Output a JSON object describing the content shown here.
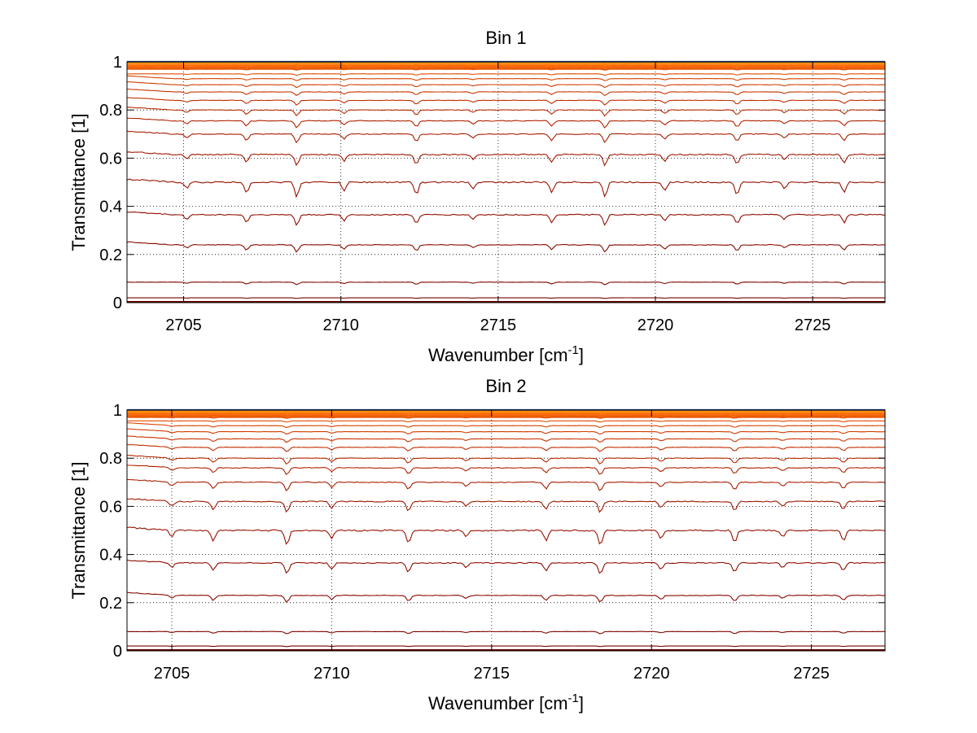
{
  "chart_data": [
    {
      "type": "line",
      "title": "Bin 1",
      "xlabel": "Wavenumber [cm",
      "xlabel_sup": "-1",
      "xlabel_end": "]",
      "ylabel": "Transmittance [1]",
      "xlim": [
        2703.2,
        2727.3
      ],
      "ylim": [
        0,
        1
      ],
      "xticks": [
        "2705",
        "2710",
        "2715",
        "2720",
        "2725"
      ],
      "yticks": [
        "0",
        "0.2",
        "0.4",
        "0.6",
        "0.8",
        "1"
      ],
      "grid": true,
      "dip_x": [
        2705.1,
        2707.0,
        2708.6,
        2710.1,
        2712.4,
        2714.2,
        2716.7,
        2718.4,
        2720.3,
        2722.6,
        2724.1,
        2726.0
      ],
      "series_levels": [
        1.0,
        0.995,
        0.99,
        0.985,
        0.98,
        0.975,
        0.97,
        0.95,
        0.93,
        0.905,
        0.875,
        0.84,
        0.8,
        0.755,
        0.7,
        0.615,
        0.5,
        0.365,
        0.24,
        0.085,
        0.02,
        0.005
      ],
      "series_colors": [
        "#1f4fa8",
        "#ff8c00",
        "#ff7a00",
        "#ff6a00",
        "#f86000",
        "#f05a00",
        "#e85500",
        "#e04c00",
        "#d84400",
        "#d03c00",
        "#c83400",
        "#c02e00",
        "#b82800",
        "#b02200",
        "#a81c00",
        "#a01600",
        "#981200",
        "#900e00",
        "#880a00",
        "#800600",
        "#780300",
        "#700000"
      ]
    },
    {
      "type": "line",
      "title": "Bin 2",
      "xlabel": "Wavenumber [cm",
      "xlabel_sup": "-1",
      "xlabel_end": "]",
      "ylabel": "Transmittance [1]",
      "xlim": [
        2703.6,
        2727.3
      ],
      "ylim": [
        0,
        1
      ],
      "xticks": [
        "2705",
        "2710",
        "2715",
        "2720",
        "2725"
      ],
      "yticks": [
        "0",
        "0.2",
        "0.4",
        "0.6",
        "0.8",
        "1"
      ],
      "grid": true,
      "dip_x": [
        2705.0,
        2706.3,
        2708.6,
        2710.0,
        2712.4,
        2714.2,
        2716.7,
        2718.4,
        2720.3,
        2722.6,
        2724.1,
        2726.0
      ],
      "series_levels": [
        1.0,
        0.995,
        0.99,
        0.985,
        0.98,
        0.975,
        0.97,
        0.955,
        0.935,
        0.91,
        0.88,
        0.845,
        0.8,
        0.76,
        0.7,
        0.62,
        0.5,
        0.365,
        0.23,
        0.08,
        0.02,
        0.005
      ],
      "series_colors": [
        "#1f4fa8",
        "#ff8c00",
        "#ff7a00",
        "#ff6a00",
        "#f86000",
        "#f05a00",
        "#e85500",
        "#e04c00",
        "#d84400",
        "#d03c00",
        "#c83400",
        "#c02e00",
        "#b82800",
        "#b02200",
        "#a81c00",
        "#a01600",
        "#981200",
        "#900e00",
        "#880a00",
        "#800600",
        "#780300",
        "#700000"
      ]
    }
  ]
}
